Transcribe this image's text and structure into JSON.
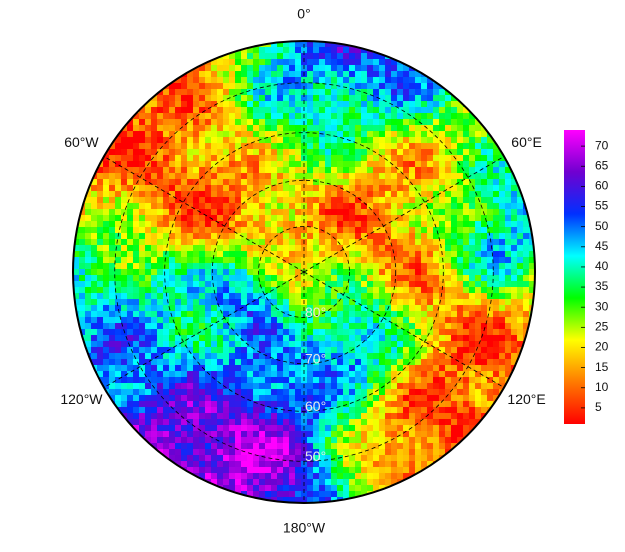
{
  "chart_data": {
    "type": "polar-heatmap",
    "lon_labels": [
      {
        "value": 0,
        "label": "0°"
      },
      {
        "value": 60,
        "label": "60°E"
      },
      {
        "value": 120,
        "label": "120°E"
      },
      {
        "value": 180,
        "label": "180°W"
      },
      {
        "value": -120,
        "label": "120°W"
      },
      {
        "value": -60,
        "label": "60°W"
      }
    ],
    "lat_circles": [
      {
        "value": 80,
        "label": "80°"
      },
      {
        "value": 70,
        "label": "70°"
      },
      {
        "value": 60,
        "label": "60°"
      },
      {
        "value": 50,
        "label": "50°"
      }
    ],
    "colorbar": {
      "lim": [
        1,
        74
      ],
      "ticks": [
        5,
        10,
        15,
        20,
        25,
        30,
        35,
        40,
        45,
        50,
        55,
        60,
        65,
        70
      ],
      "colors": [
        "#ff0000",
        "#ff7a00",
        "#ffff00",
        "#00ff00",
        "#00ffff",
        "#0030ff",
        "#7000d0",
        "#ff00ff"
      ]
    }
  }
}
